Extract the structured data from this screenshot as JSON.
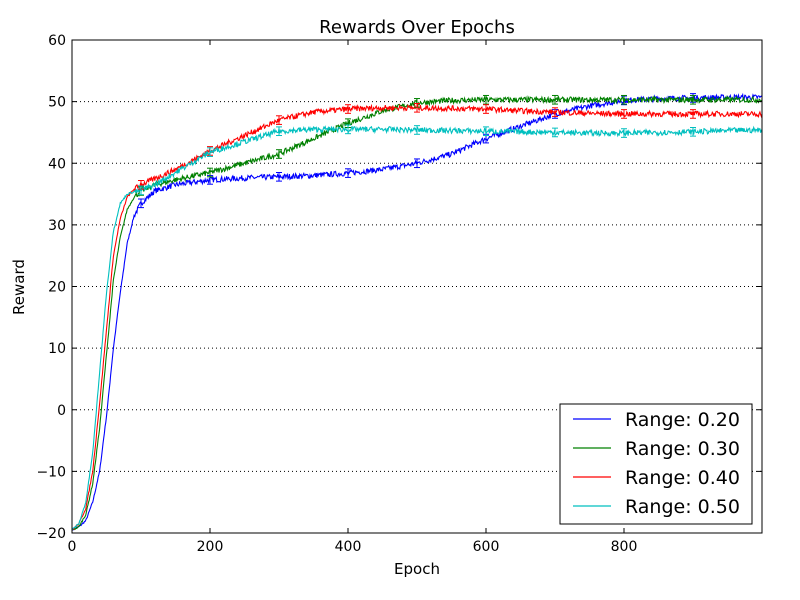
{
  "chart_data": {
    "type": "line",
    "title": "Rewards Over Epochs",
    "xlabel": "Epoch",
    "ylabel": "Reward",
    "xlim": [
      0,
      1000
    ],
    "ylim": [
      -20,
      60
    ],
    "x_ticks": [
      0,
      200,
      400,
      600,
      800
    ],
    "y_ticks": [
      -20,
      -10,
      0,
      10,
      20,
      30,
      40,
      50,
      60
    ],
    "x_tick_labels": [
      "0",
      "200",
      "400",
      "600",
      "800"
    ],
    "y_tick_labels": [
      "−20",
      "−10",
      "0",
      "10",
      "20",
      "30",
      "40",
      "50",
      "60"
    ],
    "grid": "horizontal dotted",
    "legend_position": "lower-right",
    "error_bar_epochs": [
      100,
      200,
      300,
      400,
      500,
      600,
      700,
      800,
      900
    ],
    "series": [
      {
        "name": "Range: 0.20",
        "color": "#0000ff",
        "x": [
          0,
          10,
          20,
          30,
          40,
          50,
          60,
          70,
          80,
          90,
          100,
          120,
          150,
          200,
          250,
          300,
          350,
          400,
          450,
          500,
          550,
          600,
          650,
          700,
          750,
          800,
          850,
          900,
          950,
          1000
        ],
        "y": [
          -19.5,
          -19,
          -18,
          -15,
          -10,
          -1,
          10,
          19,
          27,
          31.5,
          33.5,
          35.5,
          36.5,
          37.3,
          37.6,
          37.8,
          38,
          38.4,
          39,
          40,
          41.5,
          44,
          46,
          48,
          49.3,
          50.2,
          50.5,
          50.6,
          50.7,
          50.7
        ]
      },
      {
        "name": "Range: 0.30",
        "color": "#008000",
        "x": [
          0,
          10,
          20,
          30,
          40,
          50,
          60,
          70,
          80,
          90,
          100,
          120,
          150,
          200,
          250,
          300,
          350,
          400,
          450,
          500,
          550,
          600,
          650,
          700,
          750,
          800,
          850,
          900,
          950,
          1000
        ],
        "y": [
          -19.5,
          -19,
          -17,
          -12,
          -3,
          9,
          21,
          28,
          32.5,
          34.5,
          35.5,
          36.5,
          37.3,
          38.5,
          40,
          41.5,
          44,
          46.5,
          48.5,
          49.8,
          50.2,
          50.3,
          50.3,
          50.3,
          50.3,
          50.3,
          50.3,
          50.3,
          50.3,
          50.3
        ]
      },
      {
        "name": "Range: 0.40",
        "color": "#ff0000",
        "x": [
          0,
          10,
          20,
          30,
          40,
          50,
          60,
          70,
          80,
          90,
          100,
          120,
          150,
          200,
          250,
          300,
          350,
          400,
          450,
          500,
          550,
          600,
          650,
          700,
          750,
          800,
          850,
          900,
          950,
          1000
        ],
        "y": [
          -19.5,
          -18.5,
          -16,
          -10,
          1,
          13,
          25,
          31,
          34.5,
          35.8,
          36.5,
          37.5,
          39,
          42,
          44.5,
          47,
          48.3,
          48.8,
          49,
          49,
          48.9,
          48.8,
          48.5,
          48.3,
          48.1,
          48,
          48,
          48,
          48,
          48
        ]
      },
      {
        "name": "Range: 0.50",
        "color": "#00bfbf",
        "x": [
          0,
          10,
          20,
          30,
          40,
          50,
          60,
          70,
          80,
          90,
          100,
          120,
          150,
          200,
          250,
          300,
          350,
          400,
          450,
          500,
          550,
          600,
          650,
          700,
          750,
          800,
          850,
          900,
          950,
          1000
        ],
        "y": [
          -19.5,
          -18.5,
          -15,
          -7,
          6,
          19,
          29,
          33.5,
          35,
          35.4,
          35.6,
          36.5,
          38.5,
          41.8,
          43.5,
          45.2,
          45.5,
          45.5,
          45.5,
          45.4,
          45.3,
          45.2,
          45.1,
          45,
          44.9,
          44.9,
          45,
          45.1,
          45.3,
          45.4
        ]
      }
    ]
  }
}
